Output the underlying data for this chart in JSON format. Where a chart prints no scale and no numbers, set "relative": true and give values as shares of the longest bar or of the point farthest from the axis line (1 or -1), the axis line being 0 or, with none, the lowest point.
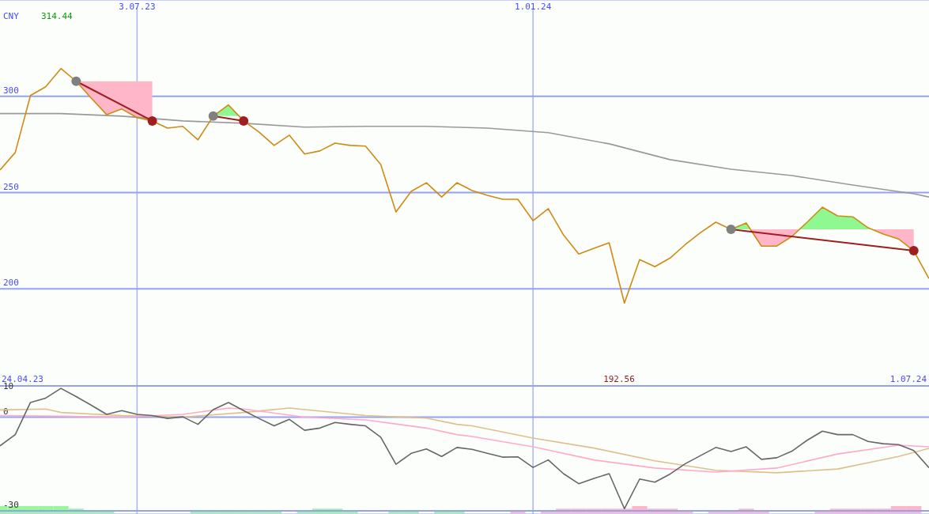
{
  "chart_data": [
    {
      "type": "line",
      "ylabel": "CNY",
      "xlim": [
        "2023-05-01",
        "2024-07-01"
      ],
      "xticks": [
        {
          "value": "2023-07-03",
          "label": "3.07.23"
        },
        {
          "value": "2024-01-01",
          "label": "1.01.24"
        }
      ],
      "ylim": [
        150,
        350
      ],
      "yticks": [
        200,
        250,
        300
      ],
      "grid": true,
      "annotations": [
        "314.44",
        "192.56",
        "24.04.23",
        "1.07.24"
      ],
      "x": [
        "2023-05-01",
        "2023-05-08",
        "2023-05-15",
        "2023-05-22",
        "2023-05-29",
        "2023-06-05",
        "2023-06-12",
        "2023-06-19",
        "2023-06-26",
        "2023-07-03",
        "2023-07-10",
        "2023-07-17",
        "2023-07-24",
        "2023-07-31",
        "2023-08-07",
        "2023-08-14",
        "2023-08-21",
        "2023-08-28",
        "2023-09-04",
        "2023-09-11",
        "2023-09-18",
        "2023-09-25",
        "2023-10-02",
        "2023-10-09",
        "2023-10-16",
        "2023-10-23",
        "2023-10-30",
        "2023-11-06",
        "2023-11-13",
        "2023-11-20",
        "2023-11-27",
        "2023-12-04",
        "2023-12-11",
        "2023-12-18",
        "2023-12-25",
        "2024-01-01",
        "2024-01-08",
        "2024-01-15",
        "2024-01-22",
        "2024-01-29",
        "2024-02-05",
        "2024-02-12",
        "2024-02-19",
        "2024-02-26",
        "2024-03-04",
        "2024-03-11",
        "2024-03-18",
        "2024-03-25",
        "2024-04-01",
        "2024-04-08",
        "2024-04-15",
        "2024-04-22",
        "2024-04-29",
        "2024-05-06",
        "2024-05-13",
        "2024-05-20",
        "2024-05-27",
        "2024-06-03",
        "2024-06-10",
        "2024-06-17",
        "2024-06-24",
        "2024-07-01"
      ],
      "series": [
        {
          "color": "#999999",
          "x": [
            "2023-05-01",
            "2023-05-29",
            "2023-06-26",
            "2023-07-24",
            "2023-08-21",
            "2023-09-18",
            "2023-10-16",
            "2023-11-13",
            "2023-12-11",
            "2024-01-08",
            "2024-02-05",
            "2024-03-04",
            "2024-04-01",
            "2024-04-29",
            "2024-05-27",
            "2024-06-24",
            "2024-07-01"
          ],
          "values": [
            291.0,
            291.0,
            289.7,
            287.2,
            286.0,
            284.0,
            284.4,
            284.4,
            283.5,
            281.1,
            275.3,
            267.1,
            262.1,
            258.8,
            253.9,
            249.4,
            247.7
          ]
        },
        {
          "color": "#d08a10",
          "values": [
            261.7,
            270.8,
            300.4,
            304.9,
            314.4,
            307.8,
            299.0,
            290.5,
            293.4,
            288.9,
            287.2,
            283.5,
            284.4,
            277.4,
            289.7,
            295.5,
            287.2,
            281.5,
            274.5,
            279.8,
            270.0,
            271.6,
            275.7,
            274.5,
            274.1,
            264.6,
            239.9,
            250.6,
            255.1,
            247.7,
            255.1,
            251.0,
            248.6,
            246.5,
            246.5,
            235.4,
            241.6,
            228.0,
            218.1,
            221.0,
            223.9,
            192.6,
            215.2,
            211.5,
            216.0,
            223.0,
            229.2,
            234.6,
            230.9,
            234.2,
            222.2,
            222.2,
            227.2,
            234.6,
            242.4,
            237.9,
            237.4,
            231.7,
            228.4,
            225.9,
            219.8,
            205.3
          ]
        },
        {
          "color": "#a01e1e",
          "marker": "circle",
          "colors": [
            "#808080",
            "#a01e1e"
          ],
          "x": [
            "2023-06-05",
            "2023-07-10"
          ],
          "values": [
            307.8,
            287.2
          ]
        },
        {
          "color": "#a01e1e",
          "marker": "circle",
          "colors": [
            "#808080",
            "#a01e1e"
          ],
          "x": [
            "2023-08-07",
            "2023-08-21"
          ],
          "values": [
            289.7,
            287.2
          ]
        },
        {
          "color": "#a01e1e",
          "marker": "circle",
          "colors": [
            "#808080",
            "#a01e1e"
          ],
          "x": [
            "2024-04-01",
            "2024-06-24"
          ],
          "values": [
            230.9,
            219.8
          ]
        }
      ]
    },
    {
      "type": "line",
      "xlim": [
        "2023-05-01",
        "2024-07-01"
      ],
      "xticks": [
        {
          "value": "2023-07-03",
          "label": null
        },
        {
          "value": "2024-01-01",
          "label": null
        }
      ],
      "ylim": [
        -31,
        10
      ],
      "yticks": [
        -30,
        0,
        10
      ],
      "grid": true,
      "tick_labels": "y",
      "x": [
        "2023-05-01",
        "2023-05-08",
        "2023-05-15",
        "2023-05-22",
        "2023-05-29",
        "2023-06-05",
        "2023-06-12",
        "2023-06-19",
        "2023-06-26",
        "2023-07-03",
        "2023-07-10",
        "2023-07-17",
        "2023-07-24",
        "2023-07-31",
        "2023-08-07",
        "2023-08-14",
        "2023-08-21",
        "2023-08-28",
        "2023-09-04",
        "2023-09-11",
        "2023-09-18",
        "2023-09-25",
        "2023-10-02",
        "2023-10-09",
        "2023-10-16",
        "2023-10-23",
        "2023-10-30",
        "2023-11-06",
        "2023-11-13",
        "2023-11-20",
        "2023-11-27",
        "2023-12-04",
        "2023-12-11",
        "2023-12-18",
        "2023-12-25",
        "2024-01-01",
        "2024-01-08",
        "2024-01-15",
        "2024-01-22",
        "2024-01-29",
        "2024-02-05",
        "2024-02-12",
        "2024-02-19",
        "2024-02-26",
        "2024-03-04",
        "2024-03-11",
        "2024-03-18",
        "2024-03-25",
        "2024-04-01",
        "2024-04-08",
        "2024-04-15",
        "2024-04-22",
        "2024-04-29",
        "2024-05-06",
        "2024-05-13",
        "2024-05-20",
        "2024-05-27",
        "2024-06-03",
        "2024-06-10",
        "2024-06-17",
        "2024-06-24",
        "2024-07-01"
      ],
      "series": [
        {
          "color": "#ddc08a",
          "x": [
            "2023-05-01",
            "2023-05-22",
            "2023-05-29",
            "2023-06-26",
            "2023-07-24",
            "2023-08-21",
            "2023-09-11",
            "2023-10-16",
            "2023-11-13",
            "2023-11-27",
            "2023-12-04",
            "2024-01-01",
            "2024-01-29",
            "2024-02-26",
            "2024-03-25",
            "2024-04-22",
            "2024-05-20",
            "2024-06-17",
            "2024-07-01"
          ],
          "values": [
            2.3,
            2.6,
            1.5,
            0.5,
            0.0,
            1.5,
            2.9,
            0.5,
            -0.3,
            -2.3,
            -2.8,
            -6.7,
            -9.9,
            -14.0,
            -17.0,
            -17.8,
            -16.6,
            -12.6,
            -10.0
          ]
        },
        {
          "color": "#ffaacc",
          "x": [
            "2023-05-01",
            "2023-05-29",
            "2023-06-26",
            "2023-07-24",
            "2023-08-14",
            "2023-08-21",
            "2023-09-18",
            "2023-10-16",
            "2023-11-13",
            "2023-11-27",
            "2023-12-04",
            "2024-01-01",
            "2024-01-29",
            "2024-02-26",
            "2024-03-25",
            "2024-04-22",
            "2024-05-20",
            "2024-06-17",
            "2024-07-01"
          ],
          "values": [
            0.5,
            0.3,
            0.0,
            0.9,
            2.9,
            2.6,
            0.0,
            -0.9,
            -3.5,
            -5.6,
            -6.2,
            -9.5,
            -13.7,
            -16.3,
            -17.6,
            -16.3,
            -11.8,
            -9.0,
            -9.5
          ]
        },
        {
          "color": "#666666",
          "values": [
            -9.2,
            -5.6,
            4.7,
            6.1,
            9.2,
            6.6,
            3.8,
            0.9,
            2.1,
            0.9,
            0.5,
            -0.4,
            0.1,
            -2.3,
            2.4,
            4.7,
            2.1,
            -0.4,
            -2.8,
            -0.7,
            -4.2,
            -3.5,
            -1.7,
            -2.3,
            -2.8,
            -6.4,
            -15.1,
            -11.6,
            -10.2,
            -12.6,
            -9.7,
            -10.3,
            -11.6,
            -12.8,
            -12.7,
            -16.1,
            -13.7,
            -18.1,
            -21.3,
            -19.6,
            -18.1,
            -29.3,
            -19.8,
            -20.8,
            -18.2,
            -14.9,
            -12.3,
            -9.7,
            -11.0,
            -9.5,
            -13.5,
            -13.0,
            -10.9,
            -7.4,
            -4.5,
            -5.6,
            -5.6,
            -7.8,
            -8.5,
            -8.8,
            -10.7,
            -16.2
          ]
        }
      ]
    },
    {
      "type": "bar",
      "relative": true,
      "xlim": [
        "2023-05-01",
        "2024-07-01"
      ],
      "tick_labels": false,
      "x": [
        "2023-05-01",
        "2023-05-08",
        "2023-05-15",
        "2023-05-22",
        "2023-05-29",
        "2023-06-05",
        "2023-06-12",
        "2023-06-19",
        "2023-07-31",
        "2023-08-07",
        "2023-08-14",
        "2023-08-21",
        "2023-08-28",
        "2023-09-04",
        "2023-09-18",
        "2023-09-25",
        "2023-10-02",
        "2023-10-09",
        "2023-10-30",
        "2023-11-06",
        "2023-11-20",
        "2023-11-27",
        "2023-12-25",
        "2024-01-08",
        "2024-01-15",
        "2024-01-22",
        "2024-01-29",
        "2024-02-05",
        "2024-02-12",
        "2024-02-19",
        "2024-02-26",
        "2024-03-04",
        "2024-03-11",
        "2024-03-25",
        "2024-04-01",
        "2024-04-08",
        "2024-04-15",
        "2024-05-13",
        "2024-05-20",
        "2024-05-27",
        "2024-06-03",
        "2024-06-10",
        "2024-06-17",
        "2024-06-24"
      ],
      "colors": [
        "#98f898",
        "#98f898",
        "#98f898",
        "#98f898",
        "#98f898",
        "#98f898",
        "#98f898",
        "#98f898",
        "#98f898",
        "#98f898",
        "#98f898",
        "#98f898",
        "#98f898",
        "#98f898",
        "#98f898",
        "#98f898",
        "#98f898",
        "#98f898",
        "#98f898",
        "#98f898",
        "#98f898",
        "#98f898",
        "#ffb6c8",
        "#ffb6c8",
        "#ffb6c8",
        "#ffb6c8",
        "#ffb6c8",
        "#ffb6c8",
        "#ffb6c8",
        "#ffb6c8",
        "#ffb6c8",
        "#ffb6c8",
        "#ffb6c8",
        "#ffb6c8",
        "#ffb6c8",
        "#ffb6c8",
        "#ffb6c8",
        "#ffb6c8",
        "#ffb6c8",
        "#ffb6c8",
        "#ffb6c8",
        "#ffb6c8",
        "#ffb6c8",
        "#ffb6c8"
      ],
      "values": [
        1,
        1,
        1,
        1,
        1,
        0.67,
        0.33,
        0.33,
        0.33,
        0.33,
        0.33,
        0.33,
        0.33,
        0.33,
        0.33,
        0.67,
        0.67,
        0.33,
        0.33,
        0.33,
        0.33,
        0.33,
        0.33,
        0.33,
        0.67,
        0.67,
        0.67,
        0.67,
        0.67,
        1,
        0.67,
        0.67,
        0.33,
        0.33,
        0.33,
        0.67,
        0.33,
        0.33,
        0.67,
        0.67,
        0.67,
        0.67,
        1,
        1
      ]
    }
  ]
}
